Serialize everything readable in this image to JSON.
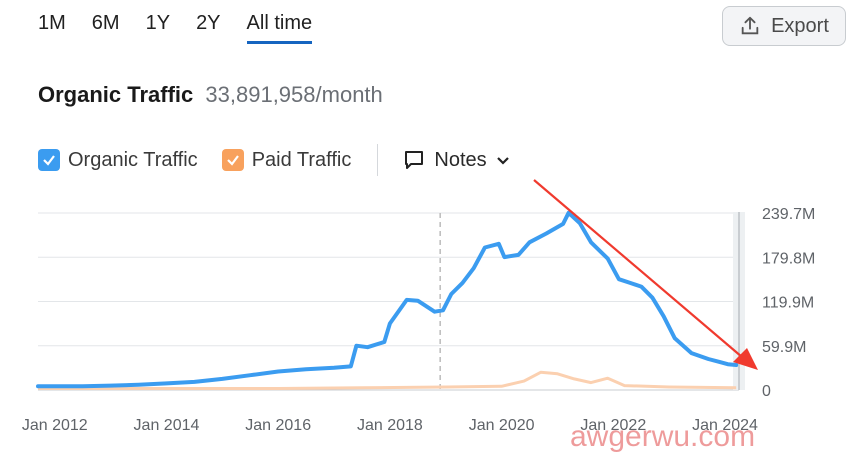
{
  "range_tabs": [
    "1M",
    "6M",
    "1Y",
    "2Y",
    "All time"
  ],
  "active_tab": "All time",
  "export_label": "Export",
  "title": {
    "label": "Organic Traffic",
    "value": "33,891,958/month"
  },
  "legend": {
    "organic": "Organic Traffic",
    "paid": "Paid Traffic",
    "notes": "Notes"
  },
  "colors": {
    "organic": "#3b9cf0",
    "paid": "#f8a15d",
    "paid_line": "#fbd0b0",
    "arrow": "#f03a2e"
  },
  "watermark": "awgerwu.com",
  "chart_data": {
    "type": "line",
    "title": "",
    "xlabel": "",
    "ylabel": "",
    "x_ticks": [
      "Jan 2012",
      "Jan 2014",
      "Jan 2016",
      "Jan 2018",
      "Jan 2020",
      "Jan 2022",
      "Jan 2024"
    ],
    "y_ticks": [
      "0",
      "59.9M",
      "119.9M",
      "179.8M",
      "239.7M"
    ],
    "ylim": [
      0,
      239.7
    ],
    "y_unit": "M",
    "grid": true,
    "series": [
      {
        "name": "Organic Traffic",
        "points": [
          [
            2011.7,
            5
          ],
          [
            2012.5,
            5
          ],
          [
            2013,
            6
          ],
          [
            2013.5,
            7
          ],
          [
            2014,
            9
          ],
          [
            2014.5,
            11
          ],
          [
            2015,
            15
          ],
          [
            2015.5,
            20
          ],
          [
            2016,
            25
          ],
          [
            2016.5,
            28
          ],
          [
            2017,
            30
          ],
          [
            2017.3,
            32
          ],
          [
            2017.4,
            60
          ],
          [
            2017.6,
            58
          ],
          [
            2017.9,
            65
          ],
          [
            2018,
            90
          ],
          [
            2018.3,
            122
          ],
          [
            2018.5,
            121
          ],
          [
            2018.8,
            106
          ],
          [
            2018.95,
            108
          ],
          [
            2019.1,
            130
          ],
          [
            2019.3,
            145
          ],
          [
            2019.5,
            165
          ],
          [
            2019.7,
            193
          ],
          [
            2019.95,
            198
          ],
          [
            2020.05,
            180
          ],
          [
            2020.3,
            183
          ],
          [
            2020.5,
            200
          ],
          [
            2020.8,
            212
          ],
          [
            2021.1,
            225
          ],
          [
            2021.2,
            240
          ],
          [
            2021.4,
            226
          ],
          [
            2021.6,
            200
          ],
          [
            2021.9,
            178
          ],
          [
            2022.1,
            150
          ],
          [
            2022.3,
            145
          ],
          [
            2022.5,
            140
          ],
          [
            2022.7,
            125
          ],
          [
            2022.9,
            100
          ],
          [
            2023.1,
            70
          ],
          [
            2023.4,
            50
          ],
          [
            2023.7,
            42
          ],
          [
            2023.9,
            38
          ],
          [
            2024.05,
            35
          ],
          [
            2024.2,
            33.9
          ]
        ]
      },
      {
        "name": "Paid Traffic",
        "points": [
          [
            2011.7,
            2
          ],
          [
            2013,
            2
          ],
          [
            2014.5,
            2
          ],
          [
            2016,
            2
          ],
          [
            2017.5,
            3
          ],
          [
            2019,
            4
          ],
          [
            2020,
            5
          ],
          [
            2020.4,
            12
          ],
          [
            2020.7,
            24
          ],
          [
            2021,
            22
          ],
          [
            2021.3,
            15
          ],
          [
            2021.6,
            10
          ],
          [
            2021.9,
            16
          ],
          [
            2022.2,
            6
          ],
          [
            2023,
            4
          ],
          [
            2024.2,
            3
          ]
        ]
      }
    ],
    "annotation_line_year": 2018.9,
    "x_range": [
      2011.7,
      2024.25
    ]
  }
}
